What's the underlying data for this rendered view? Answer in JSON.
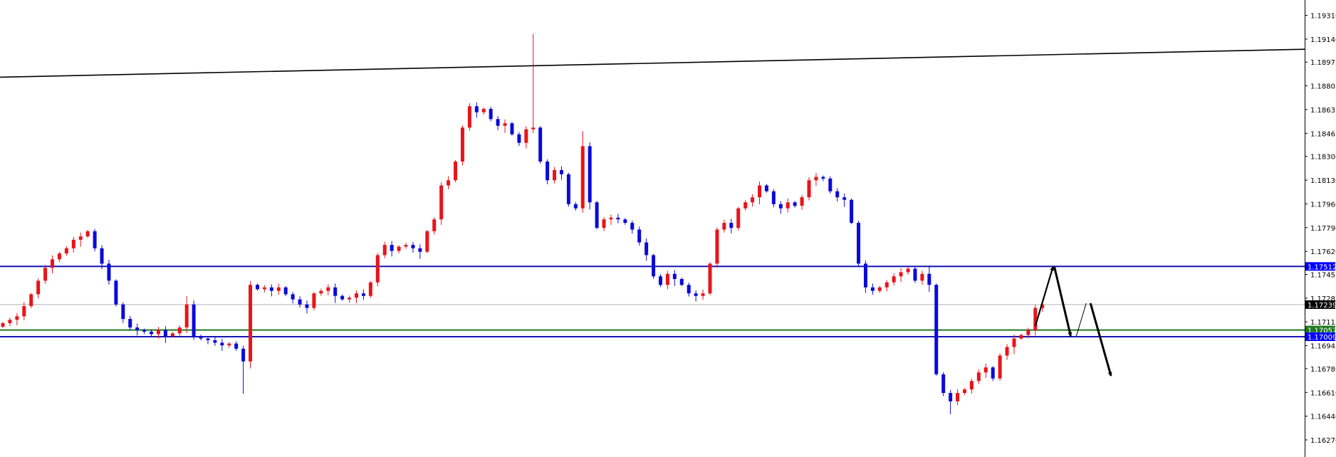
{
  "chart_data": {
    "type": "candlestick",
    "symbol": "",
    "ylim": [
      1.1617,
      1.1943
    ],
    "grid": false,
    "colors": {
      "bull": "#e8141a",
      "bear": "#0a0ad8",
      "support_resistance": "#1414b4",
      "mid_line": "#1e7a1e",
      "current_price": "#b0b0b0",
      "trendline": "#000000"
    },
    "y_ticks": [
      "1.19310",
      "1.19140",
      "1.18975",
      "1.18805",
      "1.18635",
      "1.18465",
      "1.18300",
      "1.18130",
      "1.17960",
      "1.17790",
      "1.17620",
      "1.17455",
      "1.17285",
      "1.17115",
      "1.16945",
      "1.16780",
      "1.16610",
      "1.16440",
      "1.16270"
    ],
    "first_open": 1.1708,
    "closes": [
      1.17106,
      1.1713,
      1.17155,
      1.17228,
      1.17313,
      1.1741,
      1.17502,
      1.17563,
      1.17605,
      1.17642,
      1.17703,
      1.17727,
      1.17764,
      1.17642,
      1.17532,
      1.1741,
      1.1724,
      1.17136,
      1.17075,
      1.17057,
      1.17045,
      1.17027,
      1.17057,
      1.17014,
      1.17033,
      1.17075,
      1.1724,
      1.17014,
      1.16996,
      1.16984,
      1.16966,
      1.16947,
      1.1696,
      1.16923,
      1.16832,
      1.1738,
      1.17349,
      1.17362,
      1.17337,
      1.17362,
      1.17313,
      1.17276,
      1.1724,
      1.17215,
      1.17319,
      1.17337,
      1.17362,
      1.17301,
      1.17276,
      1.17288,
      1.17319,
      1.17301,
      1.17398,
      1.17593,
      1.17666,
      1.17623,
      1.17654,
      1.17666,
      1.17642,
      1.17617,
      1.17764,
      1.17849,
      1.18092,
      1.18129,
      1.18263,
      1.18506,
      1.18659,
      1.18616,
      1.1864,
      1.18567,
      1.18519,
      1.18537,
      1.18458,
      1.18397,
      1.18494,
      1.18506,
      1.18263,
      1.18129,
      1.18202,
      1.18172,
      1.17958,
      1.17928,
      1.18373,
      1.17971,
      1.17788,
      1.17849,
      1.17861,
      1.17849,
      1.17824,
      1.17776,
      1.17684,
      1.17593,
      1.17441,
      1.1738,
      1.17459,
      1.17422,
      1.1738,
      1.17319,
      1.17301,
      1.17319,
      1.17532,
      1.17776,
      1.17824,
      1.17788,
      1.17928,
      1.17971,
      1.18007,
      1.18092,
      1.1805,
      1.17958,
      1.17928,
      1.17971,
      1.17946,
      1.18007,
      1.18129,
      1.18153,
      1.18141,
      1.1805,
      1.18007,
      1.17989,
      1.17824,
      1.17532,
      1.17362,
      1.17337,
      1.17362,
      1.17398,
      1.17441,
      1.17471,
      1.17496,
      1.1741,
      1.17459,
      1.1738,
      1.1674,
      1.16606,
      1.16546,
      1.16606,
      1.16631,
      1.16692,
      1.16753,
      1.16789,
      1.1671,
      1.16874,
      1.16935,
      1.16996,
      1.17021,
      1.17057,
      1.17215,
      1.17239
    ],
    "wick_extremes": [
      {
        "bar": 34,
        "low": 1.166
      },
      {
        "bar": 75,
        "high": 1.19176
      },
      {
        "bar": 82,
        "high": 1.1848
      },
      {
        "bar": 134,
        "low": 1.16454
      },
      {
        "bar": 26,
        "high": 1.173
      },
      {
        "bar": 131,
        "high": 1.1752
      }
    ],
    "trendline": {
      "start_price": 1.18867,
      "end_price": 1.19067
    },
    "horizontal_lines": [
      {
        "price": 1.17512,
        "label": "1.17512",
        "color": "#1414b4",
        "tag_bg": "#0000ff"
      },
      {
        "price": 1.17057,
        "label": "1.17057",
        "color": "#1e7a1e",
        "tag_bg": "#1e7a1e"
      },
      {
        "price": 1.17009,
        "label": "1.17009",
        "color": "#1414b4",
        "tag_bg": "#0000ff"
      }
    ],
    "current_price": {
      "price": 1.17239,
      "label": "1.17239"
    },
    "projection_arrows": [
      {
        "from": {
          "bar": 146,
          "price": 1.17085
        },
        "to": {
          "bar": 148.5,
          "price": 1.17509
        },
        "style": "medium",
        "head": true
      },
      {
        "from": {
          "bar": 148.7,
          "price": 1.17509
        },
        "to": {
          "bar": 151,
          "price": 1.17014
        },
        "style": "thick",
        "head": true
      },
      {
        "from": {
          "bar": 151.8,
          "price": 1.17014
        },
        "to": {
          "bar": 153.2,
          "price": 1.17249
        },
        "style": "thin",
        "head": false
      },
      {
        "from": {
          "bar": 153.8,
          "price": 1.17249
        },
        "to": {
          "bar": 156.7,
          "price": 1.16729
        },
        "style": "thick",
        "head": true
      }
    ]
  }
}
